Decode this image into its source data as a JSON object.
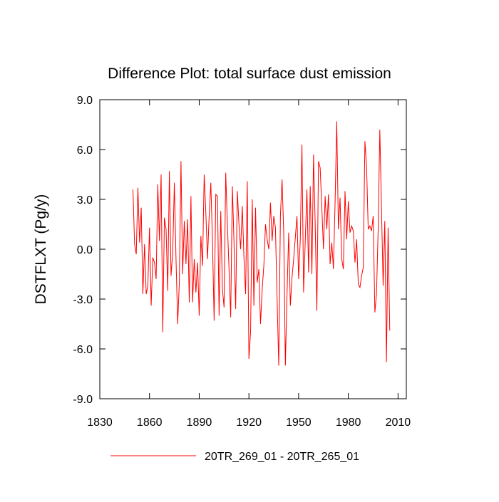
{
  "chart_data": {
    "type": "line",
    "title": "Difference Plot: total surface dust emission",
    "y_label": "DSTFLXT  (Pg/y)",
    "x": [
      1850,
      1851,
      1852,
      1853,
      1854,
      1855,
      1856,
      1857,
      1858,
      1859,
      1860,
      1861,
      1862,
      1863,
      1864,
      1865,
      1866,
      1867,
      1868,
      1869,
      1870,
      1871,
      1872,
      1873,
      1874,
      1875,
      1876,
      1877,
      1878,
      1879,
      1880,
      1881,
      1882,
      1883,
      1884,
      1885,
      1886,
      1887,
      1888,
      1889,
      1890,
      1891,
      1892,
      1893,
      1894,
      1895,
      1896,
      1897,
      1898,
      1899,
      1900,
      1901,
      1902,
      1903,
      1904,
      1905,
      1906,
      1907,
      1908,
      1909,
      1910,
      1911,
      1912,
      1913,
      1914,
      1915,
      1916,
      1917,
      1918,
      1919,
      1920,
      1921,
      1922,
      1923,
      1924,
      1925,
      1926,
      1927,
      1928,
      1929,
      1930,
      1931,
      1932,
      1933,
      1934,
      1935,
      1936,
      1937,
      1938,
      1939,
      1940,
      1941,
      1942,
      1943,
      1944,
      1945,
      1946,
      1947,
      1948,
      1949,
      1950,
      1951,
      1952,
      1953,
      1954,
      1955,
      1956,
      1957,
      1958,
      1959,
      1960,
      1961,
      1962,
      1963,
      1964,
      1965,
      1966,
      1967,
      1968,
      1969,
      1970,
      1971,
      1972,
      1973,
      1974,
      1975,
      1976,
      1977,
      1978,
      1979,
      1980,
      1981,
      1982,
      1983,
      1984,
      1985,
      1986,
      1987,
      1988,
      1989,
      1990,
      1991,
      1992,
      1993,
      1994,
      1995,
      1996,
      1997,
      1998,
      1999,
      2000,
      2001,
      2002,
      2003,
      2004,
      2005
    ],
    "series": [
      {
        "name": "20TR_269_01 - 20TR_265_01",
        "color": "#ff0000",
        "values": [
          3.6,
          0.3,
          -0.3,
          3.7,
          0.4,
          2.5,
          -2.7,
          0.3,
          -2.7,
          -2.2,
          1.3,
          -3.4,
          -0.5,
          -0.8,
          -1.8,
          3.9,
          0.5,
          4.5,
          -5.0,
          1.9,
          1.2,
          -2.5,
          4.7,
          -1.6,
          -0.2,
          4.0,
          -0.6,
          -4.5,
          -2.0,
          5.3,
          -1.5,
          1.7,
          -0.9,
          1.8,
          -3.2,
          3.2,
          -3.2,
          -0.6,
          -2.6,
          -0.8,
          -4.0,
          0.8,
          -1.0,
          4.5,
          2.2,
          -0.6,
          2.0,
          4.0,
          0.5,
          -4.3,
          3.3,
          3.2,
          -4.0,
          2.3,
          -2.4,
          -3.5,
          4.6,
          1.5,
          -1.2,
          -4.1,
          3.8,
          0.4,
          -3.6,
          3.5,
          1.5,
          0.0,
          2.6,
          -0.5,
          -2.7,
          4.1,
          -6.6,
          -5.0,
          3.0,
          -3.4,
          2.5,
          -2.0,
          -1.2,
          -4.5,
          -2.4,
          -1.0,
          1.5,
          0.6,
          0.0,
          2.8,
          0.5,
          2.0,
          1.3,
          -3.0,
          -7.0,
          2.0,
          4.2,
          1.0,
          -7.0,
          -2.7,
          1.0,
          -3.4,
          -1.7,
          -0.6,
          0.7,
          2.0,
          -1.8,
          0.6,
          6.3,
          -2.6,
          0.5,
          3.6,
          -1.4,
          3.8,
          -1.5,
          5.7,
          1.5,
          -3.7,
          5.3,
          4.9,
          2.5,
          0.0,
          3.2,
          1.2,
          3.3,
          -0.9,
          0.4,
          -1.2,
          2.8,
          7.7,
          1.2,
          3.1,
          -0.6,
          -1.2,
          3.5,
          0.6,
          2.9,
          1.0,
          1.4,
          1.1,
          -0.8,
          0.6,
          -2.1,
          -2.3,
          -1.6,
          -1.1,
          6.5,
          5.0,
          1.2,
          1.4,
          1.1,
          2.0,
          -3.8,
          -2.7,
          1.2,
          7.2,
          2.5,
          -2.2,
          1.7,
          -6.8,
          1.3,
          -4.9
        ]
      }
    ],
    "xlim": [
      1830,
      2015
    ],
    "xticks": [
      1830,
      1860,
      1890,
      1920,
      1950,
      1980,
      2010
    ],
    "ylim": [
      -9,
      9
    ],
    "yticks": [
      {
        "value": -9,
        "label": "-9.0"
      },
      {
        "value": -6,
        "label": "-6.0"
      },
      {
        "value": -3,
        "label": "-3.0"
      },
      {
        "value": 0,
        "label": "0.0"
      },
      {
        "value": 3,
        "label": "3.0"
      },
      {
        "value": 6,
        "label": "6.0"
      },
      {
        "value": 9,
        "label": "9.0"
      }
    ],
    "legend": "bottom"
  }
}
